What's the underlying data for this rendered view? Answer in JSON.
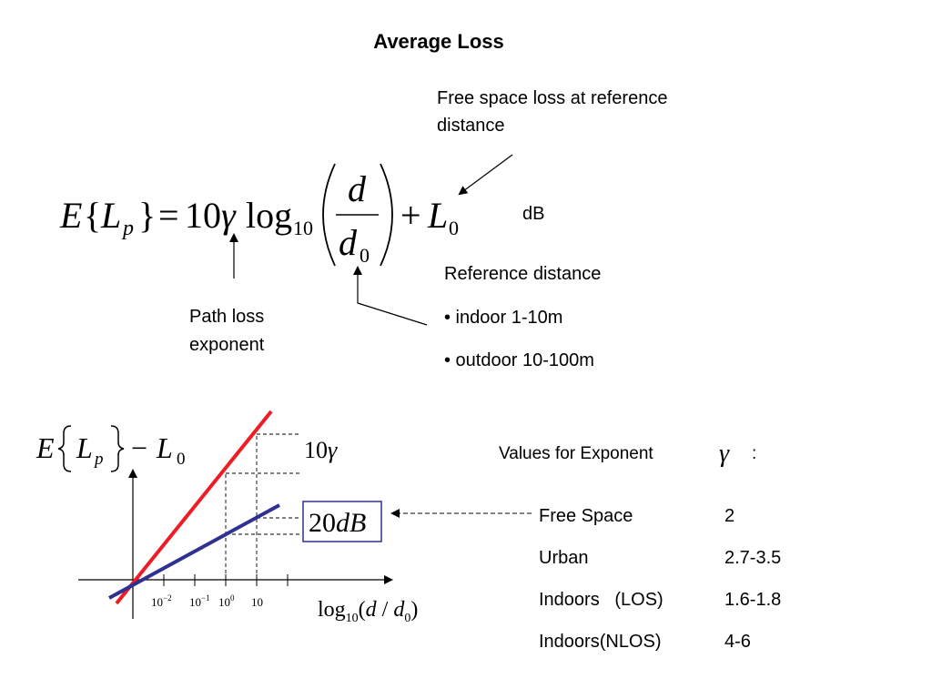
{
  "title": "Average Loss",
  "annotations": {
    "free_space_line1": "Free space loss at reference",
    "free_space_line2": "distance",
    "db_unit": "dB",
    "reference_distance": "Reference distance",
    "indoor": "• indoor 1-10m",
    "outdoor": "• outdoor 10-100m",
    "path_loss_line1": "Path loss",
    "path_loss_line2": "exponent"
  },
  "formula": {
    "E": "E",
    "lbrace": "{",
    "L": "L",
    "p": "p",
    "rbrace": "}",
    "eq": "=",
    "coef": "10",
    "gamma": "γ",
    "log": "log",
    "base": "10",
    "numerator": "d",
    "denominator": "d",
    "den_sub": "0",
    "plus": "+",
    "L0": "L",
    "L0_sub": "0"
  },
  "graph": {
    "ylabel_E": "E",
    "ylabel_L": "L",
    "ylabel_p": "p",
    "ylabel_minus": "−",
    "ylabel_L0": "L",
    "ylabel_L0_sub": "0",
    "slope_label_coef": "10",
    "slope_label_gamma": "γ",
    "box_label_num": "20",
    "box_label_unit": "dB",
    "xlabel_log": "log",
    "xlabel_base": "10",
    "xlabel_open": "(",
    "xlabel_d": "d",
    "xlabel_slash": " / ",
    "xlabel_d0": "d",
    "xlabel_d0_sub": "0",
    "xlabel_close": ")",
    "ticks": [
      {
        "base": "10",
        "exp": "−2"
      },
      {
        "base": "10",
        "exp": "−1"
      },
      {
        "base": "10",
        "exp": "0"
      },
      {
        "base": "10",
        "exp": ""
      }
    ],
    "line_colors": {
      "steep": "#ee1c24",
      "shallow": "#2e3192"
    },
    "box_border_color": "#2e3192"
  },
  "exponent_table": {
    "heading": "Values for Exponent",
    "symbol": "γ",
    "colon": ":",
    "rows": [
      {
        "label": "Free Space",
        "value": "2"
      },
      {
        "label": "Urban",
        "value": "2.7-3.5"
      },
      {
        "label": "Indoors   (LOS)",
        "value": "1.6-1.8"
      },
      {
        "label": "Indoors(NLOS)",
        "value": "4-6"
      }
    ]
  }
}
